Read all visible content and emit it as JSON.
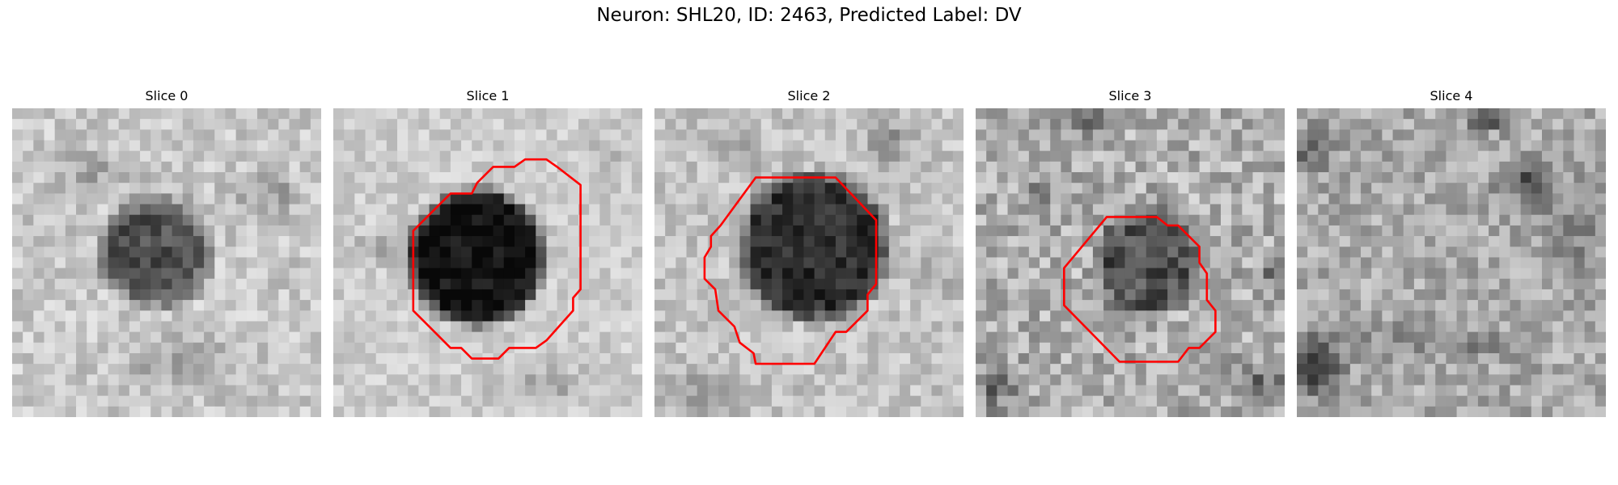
{
  "figure": {
    "title": "Neuron: SHL20, ID: 2463, Predicted Label: DV"
  },
  "panels": [
    {
      "title": "Slice 0",
      "has_contour": false,
      "contour_color": "#ff0000"
    },
    {
      "title": "Slice 1",
      "has_contour": true,
      "contour_color": "#ff0000"
    },
    {
      "title": "Slice 2",
      "has_contour": true,
      "contour_color": "#ff0000"
    },
    {
      "title": "Slice 3",
      "has_contour": true,
      "contour_color": "#ff0000"
    },
    {
      "title": "Slice 4",
      "has_contour": false,
      "contour_color": "#ff0000"
    }
  ]
}
